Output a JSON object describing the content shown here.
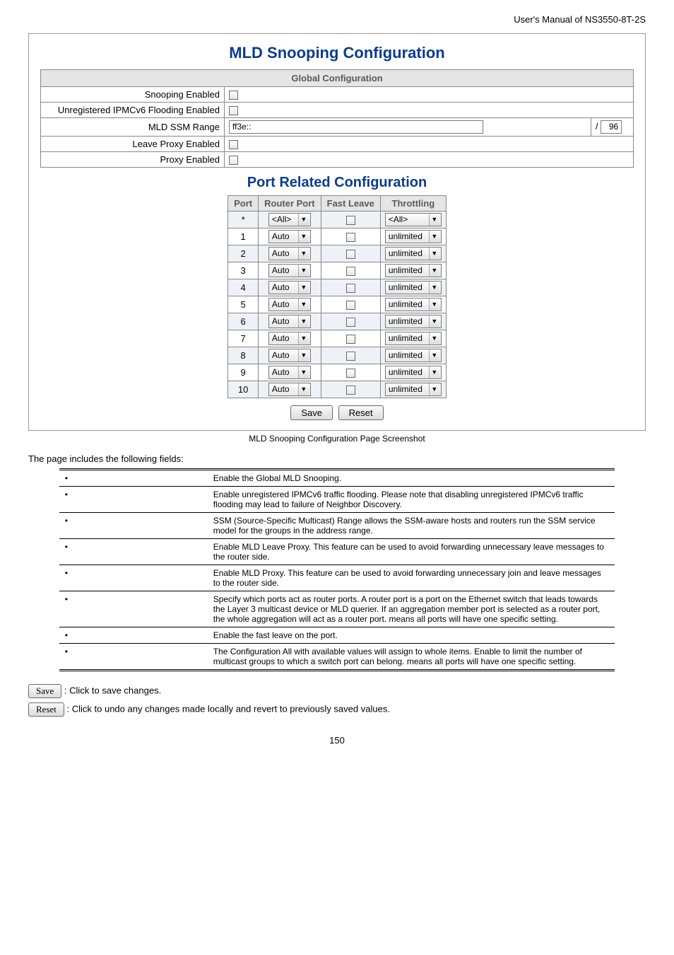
{
  "header": {
    "manual_title": "User's Manual of NS3550-8T-2S"
  },
  "titles": {
    "main": "MLD Snooping Configuration",
    "global": "Global Configuration",
    "port": "Port Related Configuration"
  },
  "global": {
    "rows": [
      {
        "label": "Snooping Enabled",
        "type": "checkbox"
      },
      {
        "label": "Unregistered IPMCv6 Flooding Enabled",
        "type": "checkbox"
      },
      {
        "label": "MLD SSM Range",
        "type": "ssm",
        "value": "ff3e::",
        "mask": "96"
      },
      {
        "label": "Leave Proxy Enabled",
        "type": "checkbox"
      },
      {
        "label": "Proxy Enabled",
        "type": "checkbox"
      }
    ]
  },
  "port": {
    "headers": [
      "Port",
      "Router Port",
      "Fast Leave",
      "Throttling"
    ],
    "rows": [
      {
        "port": "*",
        "router": "<All>",
        "throttle": "<All>",
        "alt": true
      },
      {
        "port": "1",
        "router": "Auto",
        "throttle": "unlimited",
        "alt": false
      },
      {
        "port": "2",
        "router": "Auto",
        "throttle": "unlimited",
        "alt": true
      },
      {
        "port": "3",
        "router": "Auto",
        "throttle": "unlimited",
        "alt": false
      },
      {
        "port": "4",
        "router": "Auto",
        "throttle": "unlimited",
        "alt": true
      },
      {
        "port": "5",
        "router": "Auto",
        "throttle": "unlimited",
        "alt": false
      },
      {
        "port": "6",
        "router": "Auto",
        "throttle": "unlimited",
        "alt": true
      },
      {
        "port": "7",
        "router": "Auto",
        "throttle": "unlimited",
        "alt": false
      },
      {
        "port": "8",
        "router": "Auto",
        "throttle": "unlimited",
        "alt": true
      },
      {
        "port": "9",
        "router": "Auto",
        "throttle": "unlimited",
        "alt": false
      },
      {
        "port": "10",
        "router": "Auto",
        "throttle": "unlimited",
        "alt": true
      }
    ]
  },
  "buttons": {
    "save": "Save",
    "reset": "Reset"
  },
  "caption": "MLD Snooping Configuration Page Screenshot",
  "fields_intro": "The page includes the following fields:",
  "fields": [
    {
      "desc": "Enable the Global MLD Snooping."
    },
    {
      "desc": "Enable unregistered IPMCv6 traffic flooding. Please note that disabling unregistered IPMCv6 traffic flooding may lead to failure of Neighbor Discovery."
    },
    {
      "desc": "SSM (Source-Specific Multicast) Range allows the SSM-aware hosts and routers run the SSM service model for the groups in the address range."
    },
    {
      "desc": "Enable MLD Leave Proxy. This feature can be used to avoid forwarding unnecessary leave messages to the router side."
    },
    {
      "desc": "Enable MLD Proxy. This feature can be used to avoid forwarding unnecessary join and leave messages to the router side."
    },
    {
      "desc": "Specify which ports act as router ports. A router port is a port on the Ethernet switch that leads towards the Layer 3 multicast device or MLD querier. If an aggregation member port is selected as a router port, the whole aggregation will act as a router port.      means all ports will have one specific setting."
    },
    {
      "desc": "Enable the fast leave on the port."
    },
    {
      "desc": "The Configuration All with available values will assign to whole items. Enable to limit the number of multicast groups to which a switch port can belong.   means all ports will have one specific setting."
    }
  ],
  "button_desc": {
    "save": ": Click to save changes.",
    "reset": ": Click to undo any changes made locally and revert to previously saved values."
  },
  "pagenum": "150"
}
